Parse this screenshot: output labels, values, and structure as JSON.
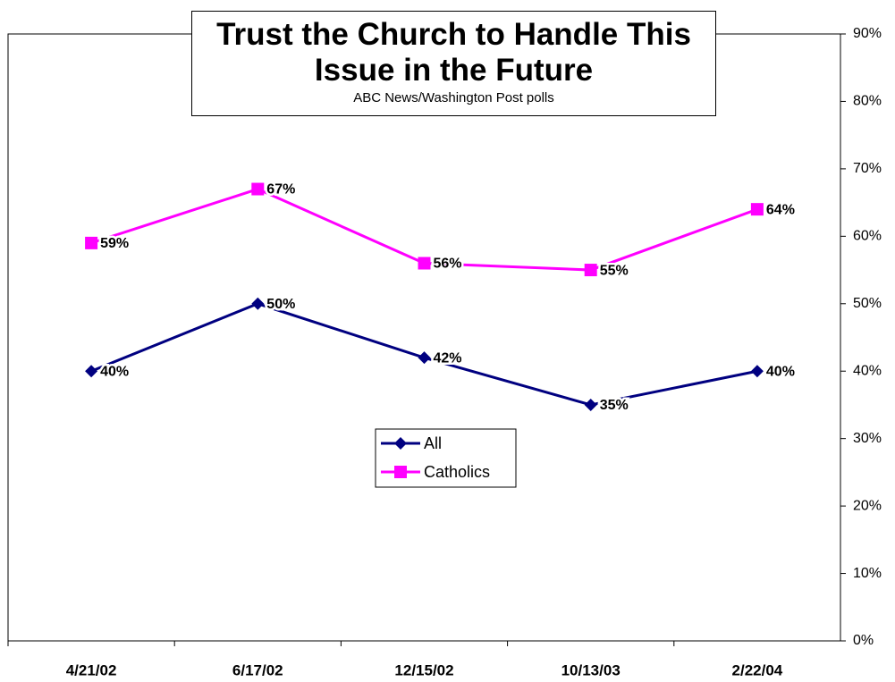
{
  "chart_data": {
    "type": "line",
    "title": "Trust the Church to Handle This Issue in the Future",
    "subtitle": "ABC News/Washington Post polls",
    "categories": [
      "4/21/02",
      "6/17/02",
      "12/15/02",
      "10/13/03",
      "2/22/04"
    ],
    "series": [
      {
        "name": "All",
        "color": "#000080",
        "marker": "diamond",
        "values": [
          40,
          50,
          42,
          35,
          40
        ],
        "value_labels": [
          "40%",
          "50%",
          "42%",
          "35%",
          "40%"
        ]
      },
      {
        "name": "Catholics",
        "color": "#ff00ff",
        "marker": "square",
        "values": [
          59,
          67,
          56,
          55,
          64
        ],
        "value_labels": [
          "59%",
          "67%",
          "56%",
          "55%",
          "64%"
        ]
      }
    ],
    "ylim": [
      0,
      90
    ],
    "yticks": [
      {
        "value": 0,
        "label": "0%"
      },
      {
        "value": 10,
        "label": "10%"
      },
      {
        "value": 20,
        "label": "20%"
      },
      {
        "value": 30,
        "label": "30%"
      },
      {
        "value": 40,
        "label": "40%"
      },
      {
        "value": 50,
        "label": "50%"
      },
      {
        "value": 60,
        "label": "60%"
      },
      {
        "value": 70,
        "label": "70%"
      },
      {
        "value": 80,
        "label": "80%"
      },
      {
        "value": 90,
        "label": "90%"
      }
    ],
    "y_axis_side": "right",
    "grid": false
  }
}
